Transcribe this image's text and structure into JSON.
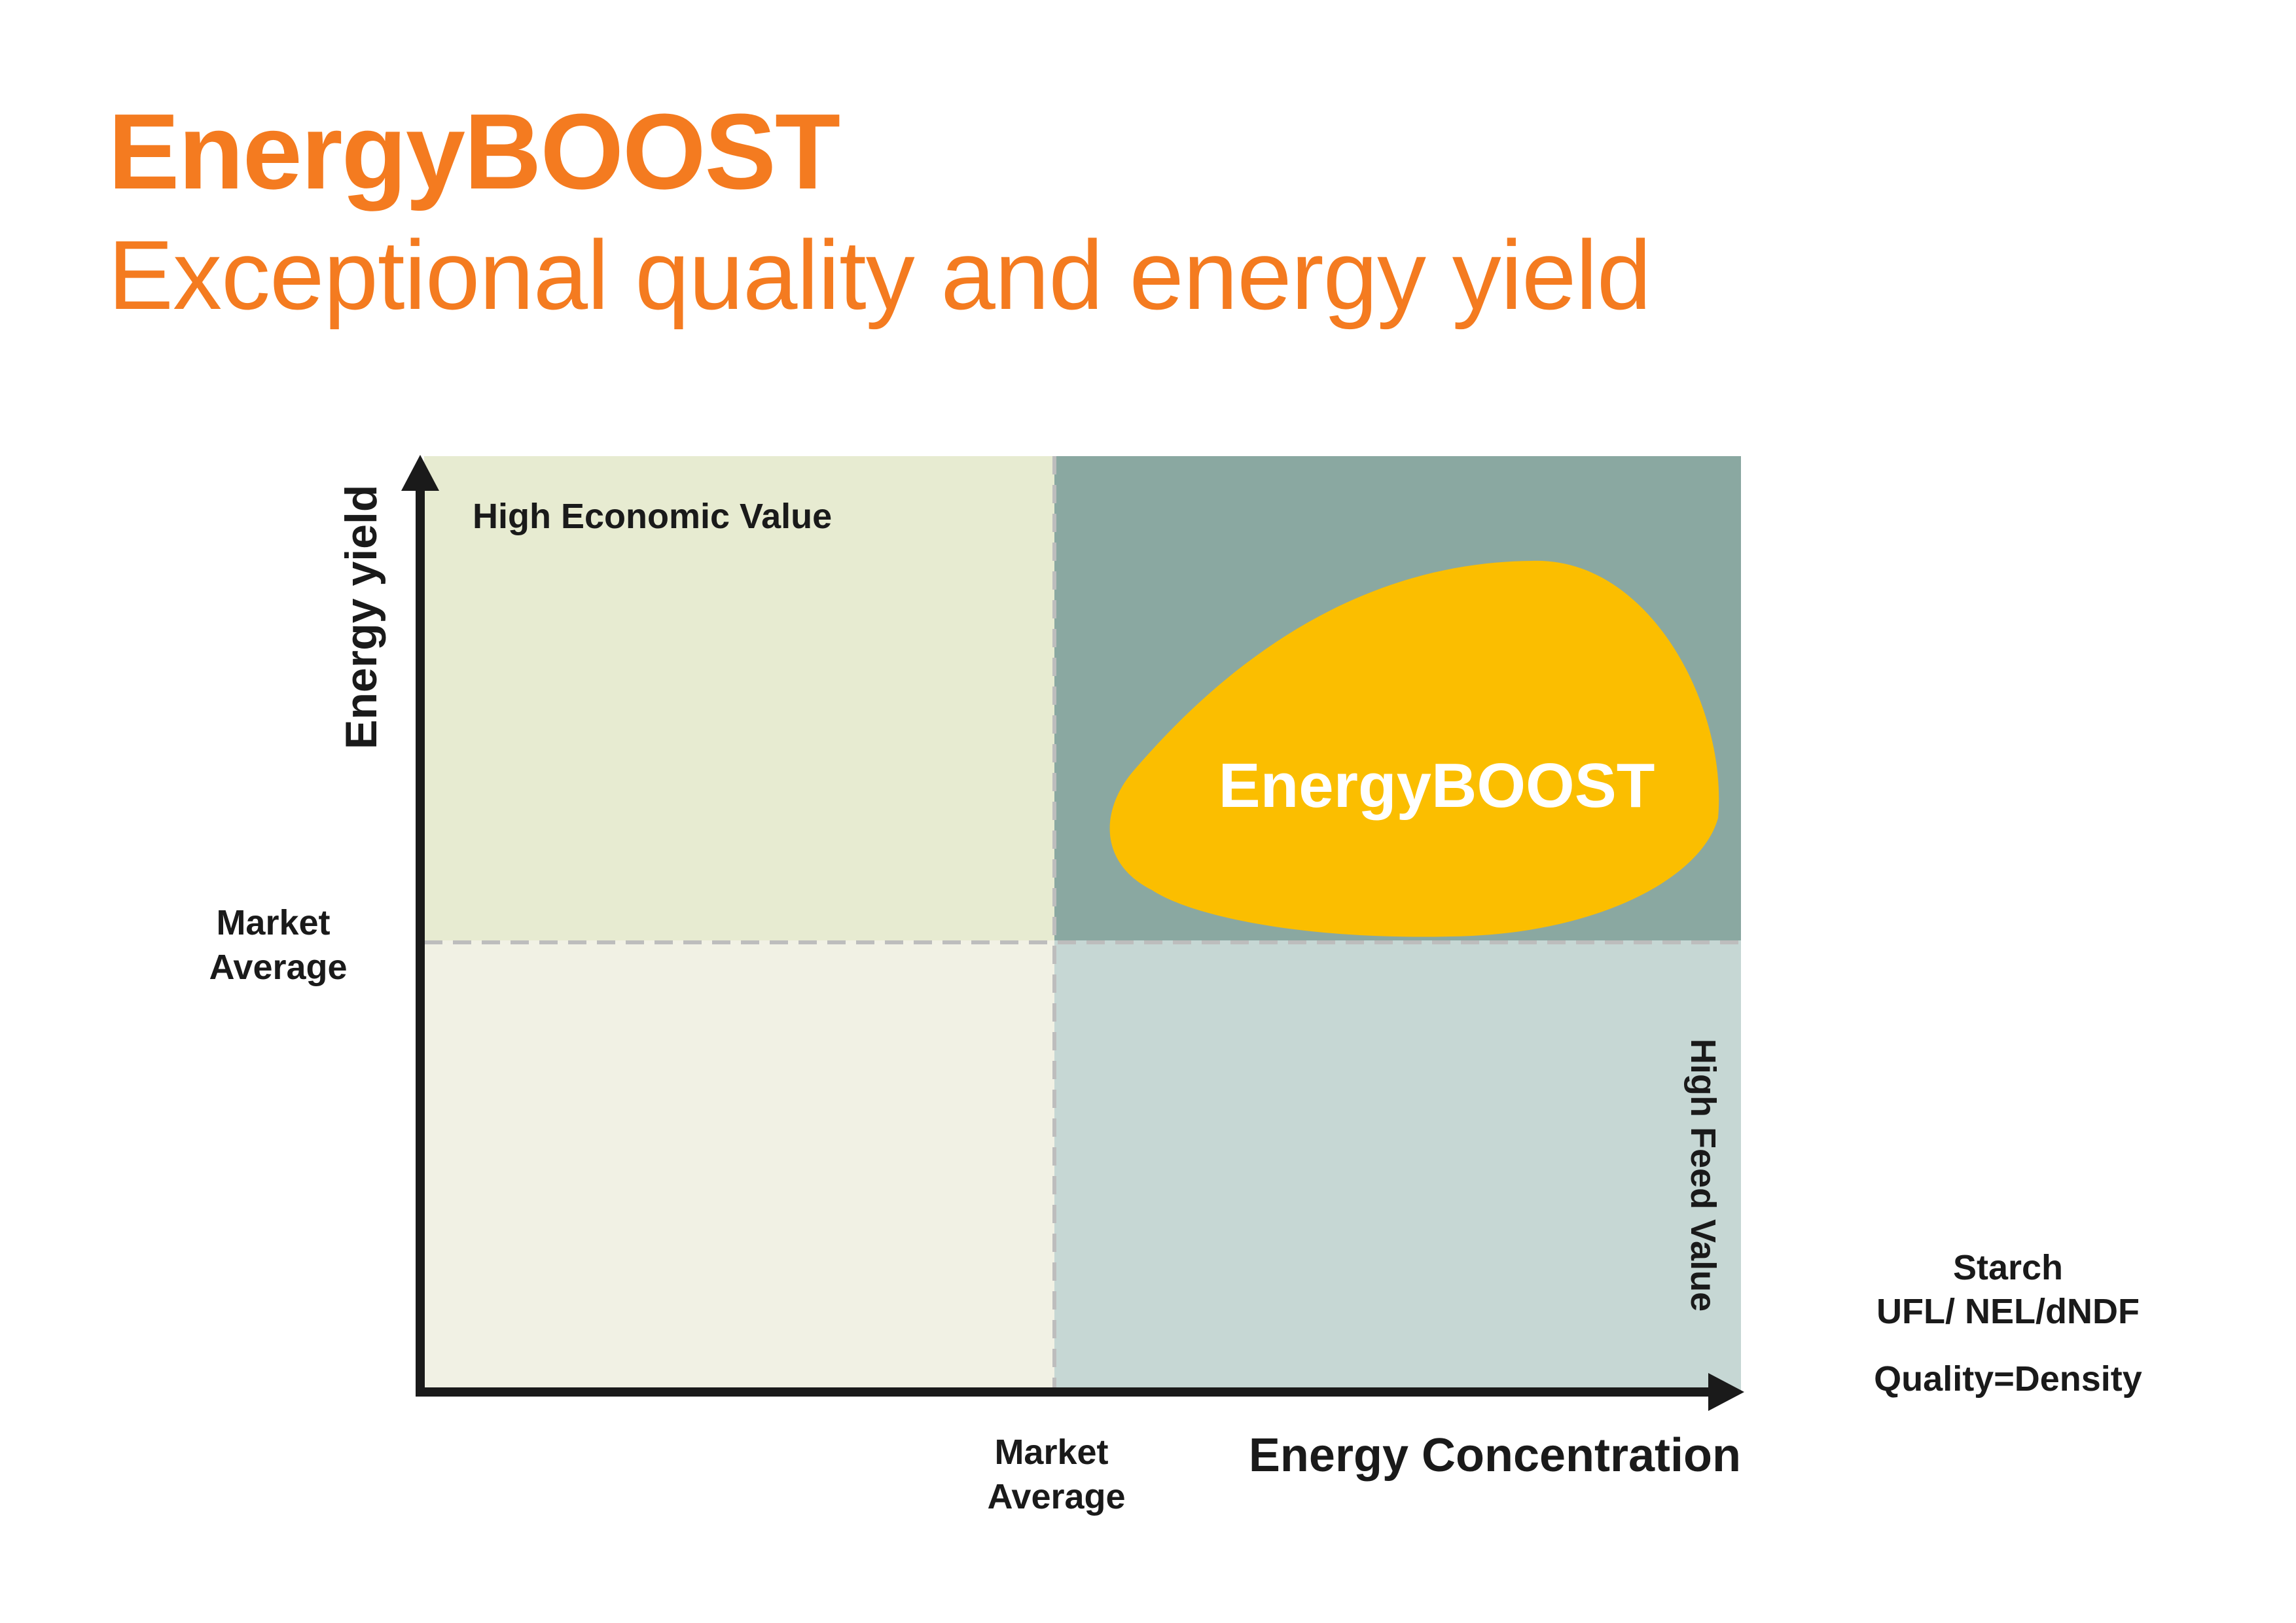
{
  "header": {
    "title": "EnergyBOOST",
    "subtitle": "Exceptional quality and energy yield"
  },
  "colors": {
    "brand_orange": "#F47B20",
    "quadrant_top_left": "#E7EBD1",
    "quadrant_top_right": "#8AA8A1",
    "quadrant_bottom_left": "#F1F1E4",
    "quadrant_bottom_right": "#C6D7D4",
    "blob": "#FBBE00",
    "axis": "#1a1a1a",
    "divider": "#BDBDBD"
  },
  "diagram": {
    "y_axis_label": "Energy yield",
    "x_axis_label": "Energy Concentration",
    "y_market_average": "Market\nAverage",
    "x_market_average": "Market\nAverage",
    "quadrant_top_left_label": "High Economic Value",
    "quadrant_bottom_right_label": "High Feed Value",
    "blob_label": "EnergyBOOST"
  },
  "side_notes": {
    "line1": "Starch",
    "line2": "UFL/ NEL/dNDF",
    "line3": "Quality=Density"
  }
}
